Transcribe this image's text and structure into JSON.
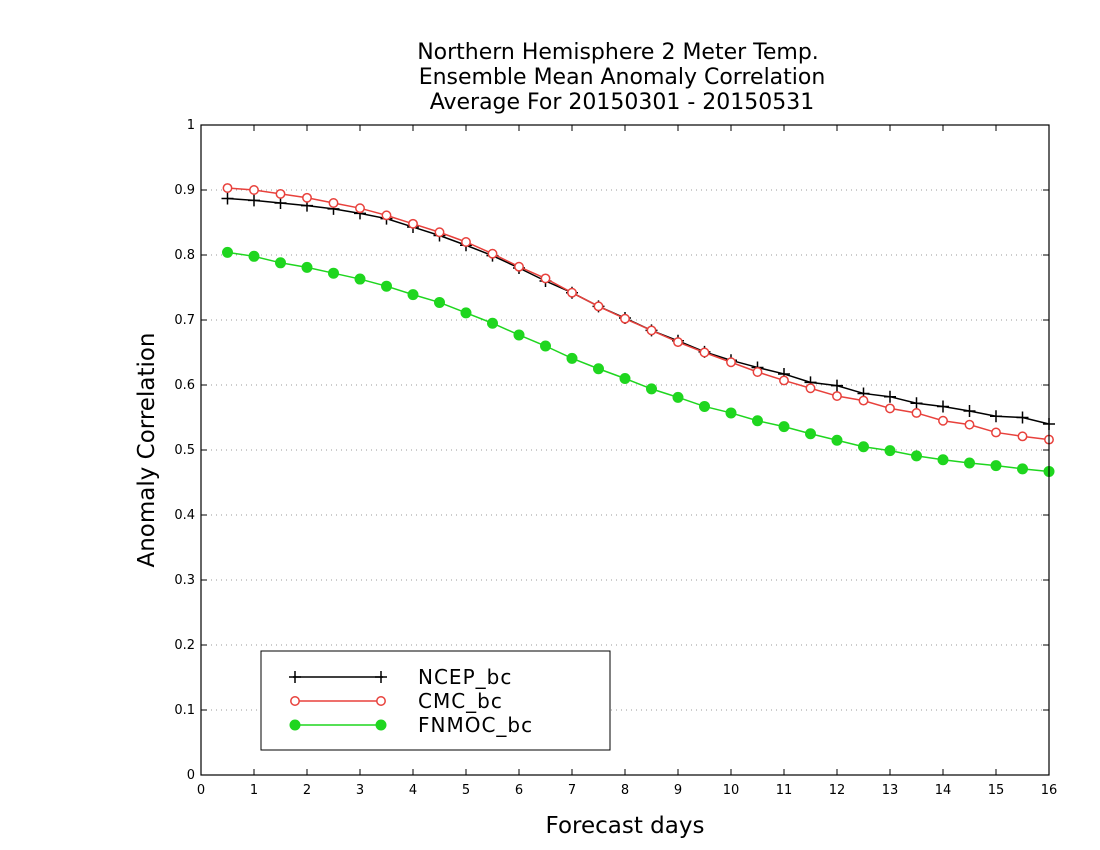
{
  "chart_data": {
    "type": "line",
    "title_lines": [
      "Northern Hemisphere 2 Meter Temp.",
      "Ensemble Mean Anomaly Correlation",
      "Average For 20150301 - 20150531"
    ],
    "xlabel": "Forecast days",
    "ylabel": "Anomaly Correlation",
    "xlim": [
      0,
      16
    ],
    "ylim": [
      0,
      1
    ],
    "x_ticks": [
      "0",
      "1",
      "2",
      "3",
      "4",
      "5",
      "6",
      "7",
      "8",
      "9",
      "10",
      "11",
      "12",
      "13",
      "14",
      "15",
      "16"
    ],
    "y_ticks": [
      "0",
      "0.1",
      "0.2",
      "0.3",
      "0.4",
      "0.5",
      "0.6",
      "0.7",
      "0.8",
      "0.9",
      "1"
    ],
    "grid": "horizontal-dotted",
    "legend_placement": "bottom-left",
    "x": [
      0.5,
      1,
      1.5,
      2,
      2.5,
      3,
      3.5,
      4,
      4.5,
      5,
      5.5,
      6,
      6.5,
      7,
      7.5,
      8,
      8.5,
      9,
      9.5,
      10,
      10.5,
      11,
      11.5,
      12,
      12.5,
      13,
      13.5,
      14,
      14.5,
      15,
      15.5,
      16
    ],
    "series": [
      {
        "name": "NCEP_bc",
        "color": "#000000",
        "marker": "plus",
        "values": [
          0.887,
          0.884,
          0.88,
          0.876,
          0.871,
          0.864,
          0.856,
          0.843,
          0.83,
          0.815,
          0.799,
          0.78,
          0.76,
          0.742,
          0.721,
          0.703,
          0.684,
          0.668,
          0.651,
          0.638,
          0.627,
          0.617,
          0.604,
          0.599,
          0.587,
          0.582,
          0.572,
          0.567,
          0.56,
          0.552,
          0.55,
          0.54
        ]
      },
      {
        "name": "CMC_bc",
        "color": "#e8413c",
        "marker": "open-circle",
        "values": [
          0.903,
          0.9,
          0.894,
          0.888,
          0.88,
          0.872,
          0.861,
          0.848,
          0.835,
          0.82,
          0.802,
          0.782,
          0.764,
          0.742,
          0.721,
          0.702,
          0.684,
          0.666,
          0.65,
          0.635,
          0.62,
          0.607,
          0.595,
          0.583,
          0.576,
          0.564,
          0.557,
          0.545,
          0.539,
          0.527,
          0.521,
          0.516
        ]
      },
      {
        "name": "FNMOC_bc",
        "color": "#1fd61f",
        "marker": "filled-circle",
        "values": [
          0.804,
          0.798,
          0.788,
          0.781,
          0.772,
          0.763,
          0.752,
          0.739,
          0.727,
          0.711,
          0.695,
          0.677,
          0.66,
          0.641,
          0.625,
          0.61,
          0.594,
          0.581,
          0.567,
          0.557,
          0.545,
          0.536,
          0.525,
          0.515,
          0.505,
          0.499,
          0.491,
          0.485,
          0.48,
          0.476,
          0.471,
          0.467
        ]
      }
    ]
  }
}
